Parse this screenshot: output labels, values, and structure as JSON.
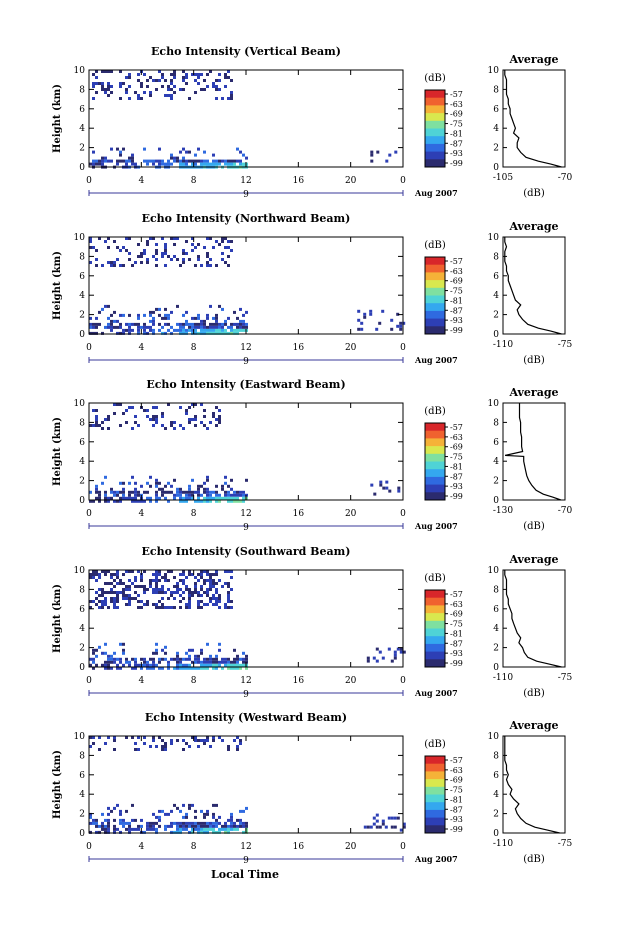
{
  "figure": {
    "bottom_xlabel": "Local Time",
    "colors": {
      "scale": [
        "#2b2b6e",
        "#2d3fb5",
        "#2f6ae0",
        "#34a8ef",
        "#4fd3d6",
        "#7fe0a0",
        "#d9e84e",
        "#f5b238",
        "#f0622f",
        "#d8262a"
      ],
      "background": "#ffffff",
      "axis": "#000000",
      "date_marker": "#3a3a9a"
    }
  },
  "panels": [
    {
      "title": "Echo Intensity (Vertical Beam)",
      "ylabel": "Height (km)",
      "date_label": "Aug 2007",
      "date_num": "9",
      "cb_unit": "(dB)",
      "cb_ticks": [
        "-57",
        "-63",
        "-69",
        "-75",
        "-81",
        "-87",
        "-93",
        "-99"
      ],
      "avg_title": "Average",
      "avg_xlabel": "(dB)",
      "avg_xticks": [
        "-105",
        "-70"
      ]
    },
    {
      "title": "Echo Intensity (Northward Beam)",
      "ylabel": "Height (km)",
      "date_label": "Aug 2007",
      "date_num": "9",
      "cb_unit": "(dB)",
      "cb_ticks": [
        "-57",
        "-63",
        "-69",
        "-75",
        "-81",
        "-87",
        "-93",
        "-99"
      ],
      "avg_title": "Average",
      "avg_xlabel": "(dB)",
      "avg_xticks": [
        "-110",
        "-75"
      ]
    },
    {
      "title": "Echo Intensity (Eastward Beam)",
      "ylabel": "Height (km)",
      "date_label": "Aug 2007",
      "date_num": "9",
      "cb_unit": "(dB)",
      "cb_ticks": [
        "-57",
        "-63",
        "-69",
        "-75",
        "-81",
        "-87",
        "-93",
        "-99"
      ],
      "avg_title": "Average",
      "avg_xlabel": "(dB)",
      "avg_xticks": [
        "-130",
        "-70"
      ]
    },
    {
      "title": "Echo Intensity (Southward Beam)",
      "ylabel": "Height (km)",
      "date_label": "Aug 2007",
      "date_num": "9",
      "cb_unit": "(dB)",
      "cb_ticks": [
        "-57",
        "-63",
        "-69",
        "-75",
        "-81",
        "-87",
        "-93",
        "-99"
      ],
      "avg_title": "Average",
      "avg_xlabel": "(dB)",
      "avg_xticks": [
        "-110",
        "-75"
      ]
    },
    {
      "title": "Echo Intensity (Westward Beam)",
      "ylabel": "Height (km)",
      "date_label": "Aug 2007",
      "date_num": "9",
      "cb_unit": "(dB)",
      "cb_ticks": [
        "-57",
        "-63",
        "-69",
        "-75",
        "-81",
        "-87",
        "-93",
        "-99"
      ],
      "avg_title": "Average",
      "avg_xlabel": "(dB)",
      "avg_xticks": [
        "-110",
        "-75"
      ]
    }
  ],
  "chart_data": [
    {
      "type": "heatmap",
      "title": "Echo Intensity (Vertical Beam)",
      "ylabel": "Height (km)",
      "x_ticks": [
        "0",
        "4",
        "8",
        "12",
        "16",
        "20",
        "0"
      ],
      "y_ticks": [
        "0",
        "2",
        "4",
        "6",
        "8",
        "10"
      ],
      "xlim": [
        0,
        24
      ],
      "ylim": [
        0,
        10
      ],
      "colorbar": {
        "unit": "(dB)",
        "ticks": [
          -57,
          -63,
          -69,
          -75,
          -81,
          -87,
          -93,
          -99
        ]
      },
      "echo_regions": [
        {
          "x": [
            0.0,
            12.0
          ],
          "y": [
            0.0,
            2.0
          ],
          "level": "strong near surface"
        },
        {
          "x": [
            0.0,
            11.0
          ],
          "y": [
            7.0,
            10.0
          ],
          "level": "weak, scattered"
        },
        {
          "x": [
            21.5,
            24.0
          ],
          "y": [
            0.5,
            2.0
          ],
          "level": "weak"
        },
        {
          "x": [
            17.6,
            17.9
          ],
          "y": [
            0.6,
            1.2
          ],
          "level": "weak"
        }
      ],
      "average_profile": {
        "xlim": [
          -105,
          -70
        ],
        "x_ticks": [
          -105,
          -70
        ],
        "ylim": [
          0,
          10
        ],
        "height": [
          0,
          0.3,
          0.6,
          1,
          1.5,
          2,
          2.5,
          3,
          3.5,
          4,
          4.5,
          5,
          5.5,
          6,
          6.5,
          7,
          7.5,
          8,
          8.5,
          9,
          9.5,
          10
        ],
        "db": [
          -72,
          -78,
          -85,
          -92,
          -95,
          -97,
          -97,
          -96,
          -99,
          -98,
          -99,
          -100,
          -101,
          -101,
          -102,
          -102,
          -103,
          -103,
          -103,
          -103,
          -104,
          -104
        ]
      }
    },
    {
      "type": "heatmap",
      "title": "Echo Intensity (Northward Beam)",
      "ylabel": "Height (km)",
      "x_ticks": [
        "0",
        "4",
        "8",
        "12",
        "16",
        "20",
        "0"
      ],
      "y_ticks": [
        "0",
        "2",
        "4",
        "6",
        "8",
        "10"
      ],
      "xlim": [
        0,
        24
      ],
      "ylim": [
        0,
        10
      ],
      "colorbar": {
        "unit": "(dB)",
        "ticks": [
          -57,
          -63,
          -69,
          -75,
          -81,
          -87,
          -93,
          -99
        ]
      },
      "echo_regions": [
        {
          "x": [
            0.0,
            12.0
          ],
          "y": [
            0.0,
            3.0
          ],
          "level": "strong near surface"
        },
        {
          "x": [
            0.0,
            11.0
          ],
          "y": [
            7.0,
            10.0
          ],
          "level": "weak, scattered"
        },
        {
          "x": [
            20.5,
            24.0
          ],
          "y": [
            0.5,
            2.5
          ],
          "level": "weak"
        }
      ],
      "average_profile": {
        "xlim": [
          -110,
          -75
        ],
        "x_ticks": [
          -110,
          -75
        ],
        "ylim": [
          0,
          10
        ],
        "height": [
          0,
          0.3,
          0.6,
          1,
          1.5,
          2,
          2.5,
          3,
          3.5,
          4,
          4.5,
          5,
          5.5,
          6,
          6.5,
          7,
          7.5,
          8,
          8.5,
          9,
          9.5,
          10
        ],
        "db": [
          -77,
          -83,
          -90,
          -96,
          -99,
          -101,
          -102,
          -100,
          -103,
          -104,
          -105,
          -106,
          -107,
          -107,
          -108,
          -108,
          -109,
          -109,
          -109,
          -108,
          -109,
          -109
        ]
      }
    },
    {
      "type": "heatmap",
      "title": "Echo Intensity (Eastward Beam)",
      "ylabel": "Height (km)",
      "x_ticks": [
        "0",
        "4",
        "8",
        "12",
        "16",
        "20",
        "0"
      ],
      "y_ticks": [
        "0",
        "2",
        "4",
        "6",
        "8",
        "10"
      ],
      "xlim": [
        0,
        24
      ],
      "ylim": [
        0,
        10
      ],
      "colorbar": {
        "unit": "(dB)",
        "ticks": [
          -57,
          -63,
          -69,
          -75,
          -81,
          -87,
          -93,
          -99
        ]
      },
      "echo_regions": [
        {
          "x": [
            0.0,
            12.0
          ],
          "y": [
            0.0,
            2.5
          ],
          "level": "strong near surface"
        },
        {
          "x": [
            0.0,
            10.0
          ],
          "y": [
            7.5,
            10.0
          ],
          "level": "weak, scattered"
        },
        {
          "x": [
            21.5,
            24.0
          ],
          "y": [
            0.5,
            2.0
          ],
          "level": "weak"
        }
      ],
      "average_profile": {
        "xlim": [
          -130,
          -70
        ],
        "x_ticks": [
          -130,
          -70
        ],
        "ylim": [
          0,
          10
        ],
        "height": [
          0,
          0.3,
          0.6,
          1,
          1.5,
          2,
          2.5,
          3,
          3.5,
          4,
          4.5,
          4.6,
          5,
          5.5,
          6,
          6.5,
          7,
          7.5,
          8,
          8.5,
          9,
          9.5,
          10
        ],
        "db": [
          -74,
          -82,
          -91,
          -98,
          -102,
          -105,
          -107,
          -108,
          -109,
          -110,
          -110,
          -128,
          -111,
          -112,
          -112,
          -112,
          -113,
          -113,
          -113,
          -114,
          -114,
          -114,
          -114
        ]
      }
    },
    {
      "type": "heatmap",
      "title": "Echo Intensity (Southward Beam)",
      "ylabel": "Height (km)",
      "x_ticks": [
        "0",
        "4",
        "8",
        "12",
        "16",
        "20",
        "0"
      ],
      "y_ticks": [
        "0",
        "2",
        "4",
        "6",
        "8",
        "10"
      ],
      "xlim": [
        0,
        24
      ],
      "ylim": [
        0,
        10
      ],
      "colorbar": {
        "unit": "(dB)",
        "ticks": [
          -57,
          -63,
          -69,
          -75,
          -81,
          -87,
          -93,
          -99
        ]
      },
      "echo_regions": [
        {
          "x": [
            0.0,
            12.0
          ],
          "y": [
            0.0,
            2.5
          ],
          "level": "strong near surface"
        },
        {
          "x": [
            0.0,
            11.0
          ],
          "y": [
            6.0,
            10.0
          ],
          "level": "weak, dense"
        },
        {
          "x": [
            21.0,
            24.0
          ],
          "y": [
            0.5,
            2.0
          ],
          "level": "weak"
        }
      ],
      "average_profile": {
        "xlim": [
          -110,
          -75
        ],
        "x_ticks": [
          -110,
          -75
        ],
        "ylim": [
          0,
          10
        ],
        "height": [
          0,
          0.3,
          0.6,
          1,
          1.5,
          2,
          2.5,
          3,
          3.5,
          4,
          4.5,
          5,
          5.5,
          6,
          6.5,
          7,
          7.5,
          8,
          8.5,
          9,
          9.5,
          10
        ],
        "db": [
          -77,
          -84,
          -91,
          -96,
          -98,
          -99,
          -101,
          -100,
          -102,
          -103,
          -104,
          -105,
          -105,
          -106,
          -107,
          -107,
          -108,
          -108,
          -108,
          -108,
          -109,
          -109
        ]
      }
    },
    {
      "type": "heatmap",
      "title": "Echo Intensity (Westward Beam)",
      "ylabel": "Height (km)",
      "x_ticks": [
        "0",
        "4",
        "8",
        "12",
        "16",
        "20",
        "0"
      ],
      "y_ticks": [
        "0",
        "2",
        "4",
        "6",
        "8",
        "10"
      ],
      "xlim": [
        0,
        24
      ],
      "ylim": [
        0,
        10
      ],
      "colorbar": {
        "unit": "(dB)",
        "ticks": [
          -57,
          -63,
          -69,
          -75,
          -81,
          -87,
          -93,
          -99
        ]
      },
      "echo_regions": [
        {
          "x": [
            0.0,
            12.0
          ],
          "y": [
            0.0,
            3.0
          ],
          "level": "strong near surface"
        },
        {
          "x": [
            0.0,
            11.5
          ],
          "y": [
            8.5,
            10.0
          ],
          "level": "weak, scattered"
        },
        {
          "x": [
            21.0,
            24.0
          ],
          "y": [
            0.3,
            2.0
          ],
          "level": "weak"
        }
      ],
      "average_profile": {
        "xlim": [
          -110,
          -75
        ],
        "x_ticks": [
          -110,
          -75
        ],
        "ylim": [
          0,
          10
        ],
        "height": [
          0,
          0.3,
          0.6,
          1,
          1.5,
          2,
          2.5,
          3,
          3.5,
          4,
          4.5,
          5,
          5.5,
          6,
          6.5,
          7,
          7.5,
          8,
          8.5,
          9,
          9.5,
          10
        ],
        "db": [
          -78,
          -85,
          -92,
          -97,
          -100,
          -102,
          -103,
          -101,
          -104,
          -106,
          -105,
          -107,
          -108,
          -107,
          -108,
          -108,
          -109,
          -109,
          -109,
          -109,
          -109,
          -109
        ]
      }
    }
  ]
}
